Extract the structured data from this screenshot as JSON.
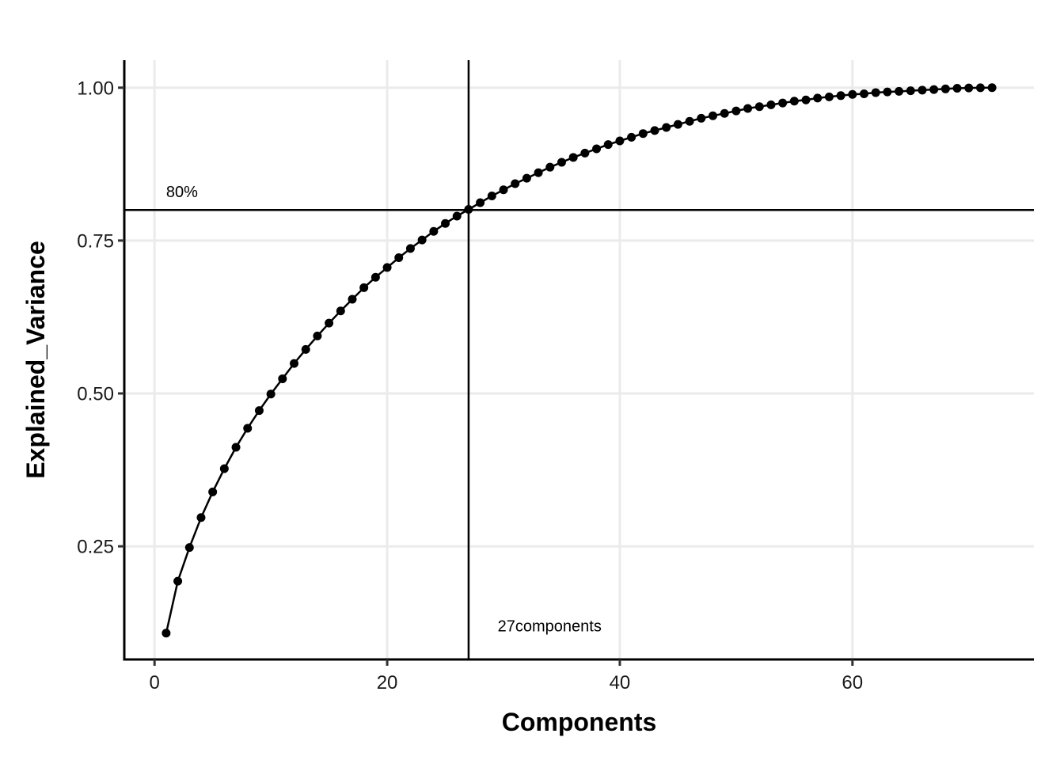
{
  "chart_data": {
    "type": "line",
    "title": "",
    "xlabel": "Components",
    "ylabel": "Explained_Variance",
    "xlim": [
      -2.6,
      75.6
    ],
    "ylim": [
      0.065,
      1.045
    ],
    "x_ticks": [
      0,
      20,
      40,
      60
    ],
    "x_tick_labels": [
      "0",
      "20",
      "40",
      "60"
    ],
    "y_ticks": [
      0.25,
      0.5,
      0.75,
      1.0
    ],
    "y_tick_labels": [
      "0.25",
      "0.50",
      "0.75",
      "1.00"
    ],
    "grid": true,
    "colors": {
      "line": "#000000",
      "grid": "#ebebeb"
    },
    "series": [
      {
        "x": [
          1,
          2,
          3,
          4,
          5,
          6,
          7,
          8,
          9,
          10,
          11,
          12,
          13,
          14,
          15,
          16,
          17,
          18,
          19,
          20,
          21,
          22,
          23,
          24,
          25,
          26,
          27,
          28,
          29,
          30,
          31,
          32,
          33,
          34,
          35,
          36,
          37,
          38,
          39,
          40,
          41,
          42,
          43,
          44,
          45,
          46,
          47,
          48,
          49,
          50,
          51,
          52,
          53,
          54,
          55,
          56,
          57,
          58,
          59,
          60,
          61,
          62,
          63,
          64,
          65,
          66,
          67,
          68,
          69,
          70,
          71,
          72
        ],
        "values": [
          0.108,
          0.193,
          0.248,
          0.297,
          0.339,
          0.377,
          0.412,
          0.443,
          0.472,
          0.499,
          0.524,
          0.549,
          0.572,
          0.594,
          0.615,
          0.635,
          0.654,
          0.673,
          0.69,
          0.706,
          0.722,
          0.737,
          0.751,
          0.765,
          0.778,
          0.79,
          0.801,
          0.812,
          0.823,
          0.833,
          0.843,
          0.852,
          0.861,
          0.87,
          0.878,
          0.886,
          0.893,
          0.9,
          0.907,
          0.913,
          0.919,
          0.925,
          0.93,
          0.935,
          0.94,
          0.945,
          0.95,
          0.954,
          0.958,
          0.962,
          0.966,
          0.969,
          0.972,
          0.975,
          0.978,
          0.98,
          0.983,
          0.985,
          0.987,
          0.989,
          0.99,
          0.992,
          0.993,
          0.994,
          0.995,
          0.996,
          0.997,
          0.998,
          0.999,
          0.9995,
          0.9998,
          1.0
        ]
      }
    ],
    "reference_lines": {
      "hline_y": 0.8,
      "vline_x": 27
    },
    "annotations": [
      {
        "text": "80%",
        "x": 1,
        "y": 0.83
      },
      {
        "text": "27components",
        "x": 29.5,
        "y": 0.12
      }
    ]
  }
}
